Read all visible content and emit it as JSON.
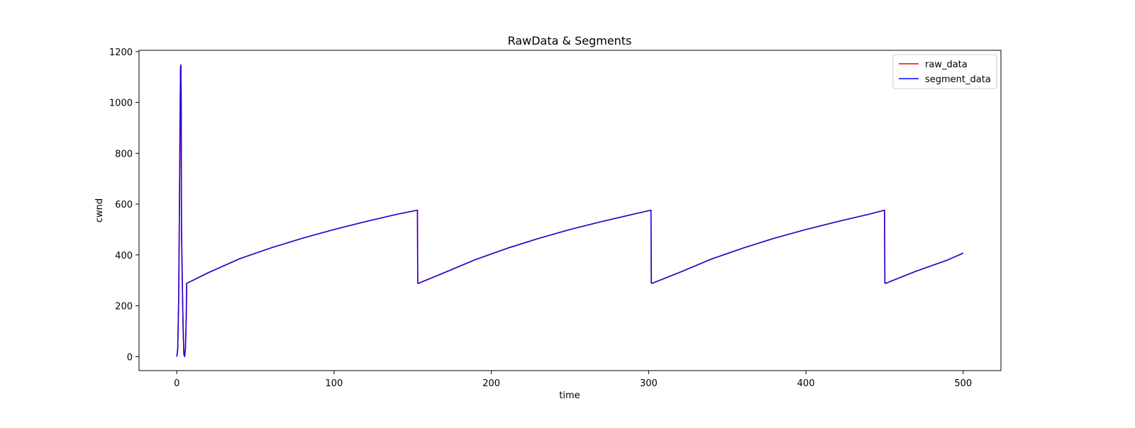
{
  "chart_data": {
    "type": "line",
    "title": "RawData & Segments",
    "xlabel": "time",
    "ylabel": "cwnd",
    "xlim": [
      -24,
      524
    ],
    "ylim": [
      -55,
      1205
    ],
    "x_ticks": [
      0,
      100,
      200,
      300,
      400,
      500
    ],
    "y_ticks": [
      0,
      200,
      400,
      600,
      800,
      1000,
      1200
    ],
    "grid": false,
    "legend_position": "top-right",
    "series": [
      {
        "name": "raw_data",
        "color": "#ff0000",
        "points": [
          [
            0,
            0
          ],
          [
            0.6,
            30
          ],
          [
            1.2,
            220
          ],
          [
            1.7,
            600
          ],
          [
            2.1,
            950
          ],
          [
            2.4,
            1140
          ],
          [
            2.6,
            1148
          ],
          [
            2.8,
            1000
          ],
          [
            3.0,
            500
          ],
          [
            3.5,
            300
          ],
          [
            4.0,
            120
          ],
          [
            4.5,
            10
          ],
          [
            5.0,
            0
          ],
          [
            5.5,
            30
          ],
          [
            6.0,
            150
          ],
          [
            6.3,
            288
          ],
          [
            20,
            330
          ],
          [
            40,
            385
          ],
          [
            60,
            428
          ],
          [
            80,
            466
          ],
          [
            100,
            500
          ],
          [
            120,
            531
          ],
          [
            140,
            560
          ],
          [
            153,
            576
          ],
          [
            153.2,
            290
          ],
          [
            153.5,
            288
          ],
          [
            170,
            330
          ],
          [
            190,
            382
          ],
          [
            210,
            426
          ],
          [
            230,
            465
          ],
          [
            250,
            500
          ],
          [
            270,
            531
          ],
          [
            290,
            560
          ],
          [
            301.5,
            576
          ],
          [
            301.7,
            290
          ],
          [
            302,
            288
          ],
          [
            320,
            332
          ],
          [
            340,
            384
          ],
          [
            360,
            427
          ],
          [
            380,
            466
          ],
          [
            400,
            500
          ],
          [
            420,
            531
          ],
          [
            440,
            560
          ],
          [
            450,
            576
          ],
          [
            450.2,
            290
          ],
          [
            450.5,
            288
          ],
          [
            470,
            336
          ],
          [
            490,
            380
          ],
          [
            500,
            407
          ]
        ]
      },
      {
        "name": "segment_data",
        "color": "#0000ff",
        "points": [
          [
            0,
            0
          ],
          [
            0.6,
            30
          ],
          [
            1.2,
            220
          ],
          [
            1.7,
            600
          ],
          [
            2.1,
            950
          ],
          [
            2.4,
            1140
          ],
          [
            2.6,
            1145
          ],
          [
            2.8,
            1000
          ],
          [
            3.0,
            500
          ],
          [
            3.5,
            300
          ],
          [
            4.0,
            120
          ],
          [
            4.5,
            10
          ],
          [
            5.0,
            0
          ],
          [
            5.5,
            30
          ],
          [
            6.0,
            150
          ],
          [
            6.3,
            288
          ],
          [
            20,
            330
          ],
          [
            40,
            385
          ],
          [
            60,
            428
          ],
          [
            80,
            466
          ],
          [
            100,
            500
          ],
          [
            120,
            531
          ],
          [
            140,
            560
          ],
          [
            153,
            576
          ],
          [
            153.2,
            290
          ],
          [
            153.5,
            288
          ],
          [
            170,
            330
          ],
          [
            190,
            382
          ],
          [
            210,
            426
          ],
          [
            230,
            465
          ],
          [
            250,
            500
          ],
          [
            270,
            531
          ],
          [
            290,
            560
          ],
          [
            301.5,
            576
          ],
          [
            301.7,
            290
          ],
          [
            302,
            288
          ],
          [
            320,
            332
          ],
          [
            340,
            384
          ],
          [
            360,
            427
          ],
          [
            380,
            466
          ],
          [
            400,
            500
          ],
          [
            420,
            531
          ],
          [
            440,
            560
          ],
          [
            450,
            576
          ],
          [
            450.2,
            290
          ],
          [
            450.5,
            288
          ],
          [
            470,
            336
          ],
          [
            490,
            380
          ],
          [
            500,
            407
          ]
        ]
      }
    ]
  }
}
